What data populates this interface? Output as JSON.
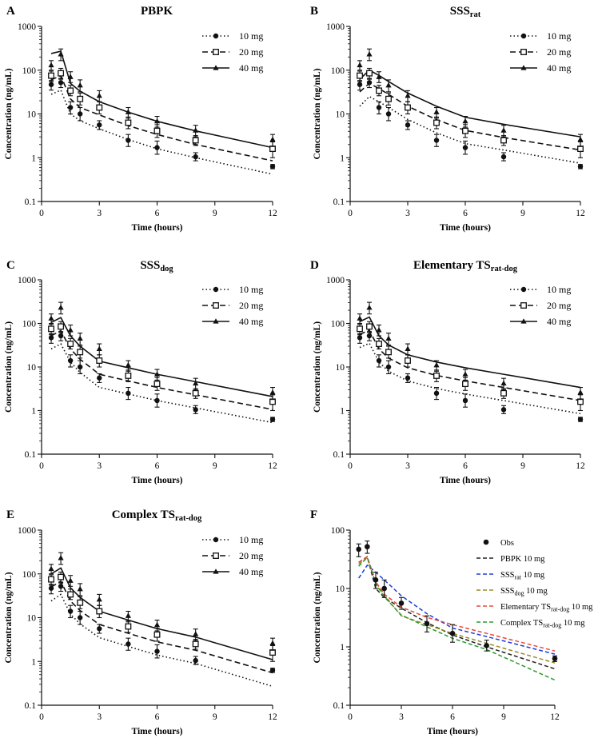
{
  "chart_data": [
    {
      "type": "line",
      "panel": "A",
      "title": "PBPK",
      "title_sub": "",
      "xlabel": "Time (hours)",
      "ylabel": "Concentration (ng/mL)",
      "xlim": [
        0,
        12
      ],
      "ylim": [
        0.1,
        1000
      ],
      "yscale": "log",
      "xticks": [
        0,
        3,
        6,
        9,
        12
      ],
      "yticks": [
        0.1,
        1,
        10,
        100,
        1000
      ],
      "ytick_labels": [
        "0.1",
        "1",
        "10",
        "100",
        "1000"
      ],
      "legend": [
        "10 mg",
        "20 mg",
        "40 mg"
      ],
      "series": [
        {
          "name": "10 mg",
          "x": [
            0.5,
            1,
            1.5,
            2,
            3,
            4.5,
            6,
            8,
            12
          ],
          "values": [
            28,
            35,
            10,
            7,
            4.6,
            2.6,
            1.6,
            1.0,
            0.42
          ]
        },
        {
          "name": "20 mg",
          "x": [
            0.5,
            1,
            1.5,
            2,
            3,
            4.5,
            6,
            8,
            12
          ],
          "values": [
            60,
            75,
            22,
            14,
            9.5,
            5.4,
            3.4,
            2.0,
            0.85
          ]
        },
        {
          "name": "40 mg",
          "x": [
            0.5,
            1,
            1.5,
            2,
            3,
            4.5,
            6,
            8,
            12
          ],
          "values": [
            240,
            270,
            50,
            33,
            19,
            11,
            6.8,
            4.1,
            1.7
          ]
        }
      ]
    },
    {
      "type": "line",
      "panel": "B",
      "title": "SSS",
      "title_sub": "rat",
      "xlabel": "Time (hours)",
      "ylabel": "Concentration (ng/mL)",
      "xlim": [
        0,
        12
      ],
      "ylim": [
        0.1,
        1000
      ],
      "yscale": "log",
      "xticks": [
        0,
        3,
        6,
        9,
        12
      ],
      "yticks": [
        0.1,
        1,
        10,
        100,
        1000
      ],
      "ytick_labels": [
        "0.1",
        "1",
        "10",
        "100",
        "1000"
      ],
      "legend": [
        "10 mg",
        "20 mg",
        "40 mg"
      ],
      "series": [
        {
          "name": "10 mg",
          "x": [
            0.5,
            1,
            1.5,
            2,
            3,
            4.5,
            6,
            8,
            12
          ],
          "values": [
            15,
            25,
            19,
            14,
            7.5,
            3.7,
            2.1,
            1.5,
            0.75
          ]
        },
        {
          "name": "20 mg",
          "x": [
            0.5,
            1,
            1.5,
            2,
            3,
            4.5,
            6,
            8,
            12
          ],
          "values": [
            32,
            50,
            38,
            28,
            15,
            7.4,
            4.2,
            2.9,
            1.5
          ]
        },
        {
          "name": "40 mg",
          "x": [
            0.5,
            1,
            1.5,
            2,
            3,
            4.5,
            6,
            8,
            12
          ],
          "values": [
            62,
            100,
            76,
            55,
            30,
            15,
            8.4,
            5.8,
            3.0
          ]
        }
      ]
    },
    {
      "type": "line",
      "panel": "C",
      "title": "SSS",
      "title_sub": "dog",
      "xlabel": "Time (hours)",
      "ylabel": "Concentration (ng/mL)",
      "xlim": [
        0,
        12
      ],
      "ylim": [
        0.1,
        1000
      ],
      "yscale": "log",
      "xticks": [
        0,
        3,
        6,
        9,
        12
      ],
      "yticks": [
        0.1,
        1,
        10,
        100,
        1000
      ],
      "ytick_labels": [
        "0.1",
        "1",
        "10",
        "100",
        "1000"
      ],
      "legend": [
        "10 mg",
        "20 mg",
        "40 mg"
      ],
      "series": [
        {
          "name": "10 mg",
          "x": [
            0.5,
            1,
            1.5,
            2,
            3,
            4.5,
            6,
            8,
            12
          ],
          "values": [
            26,
            34,
            13,
            7.5,
            3.4,
            2.4,
            1.7,
            1.15,
            0.53
          ]
        },
        {
          "name": "20 mg",
          "x": [
            0.5,
            1,
            1.5,
            2,
            3,
            4.5,
            6,
            8,
            12
          ],
          "values": [
            52,
            68,
            26,
            15,
            6.8,
            4.8,
            3.4,
            2.3,
            1.06
          ]
        },
        {
          "name": "40 mg",
          "x": [
            0.5,
            1,
            1.5,
            2,
            3,
            4.5,
            6,
            8,
            12
          ],
          "values": [
            105,
            136,
            52,
            30,
            13.6,
            9.6,
            6.8,
            4.6,
            2.1
          ]
        }
      ]
    },
    {
      "type": "line",
      "panel": "D",
      "title": "Elementary TS",
      "title_sub": "rat-dog",
      "xlabel": "Time (hours)",
      "ylabel": "Concentration (ng/mL)",
      "xlim": [
        0,
        12
      ],
      "ylim": [
        0.1,
        1000
      ],
      "yscale": "log",
      "xticks": [
        0,
        3,
        6,
        9,
        12
      ],
      "yticks": [
        0.1,
        1,
        10,
        100,
        1000
      ],
      "ytick_labels": [
        "0.1",
        "1",
        "10",
        "100",
        "1000"
      ],
      "legend": [
        "10 mg",
        "20 mg",
        "40 mg"
      ],
      "series": [
        {
          "name": "10 mg",
          "x": [
            0.5,
            1,
            1.5,
            2,
            3,
            4.5,
            6,
            8,
            12
          ],
          "values": [
            28,
            35,
            13,
            8,
            4.8,
            3.2,
            2.4,
            1.7,
            0.85
          ]
        },
        {
          "name": "20 mg",
          "x": [
            0.5,
            1,
            1.5,
            2,
            3,
            4.5,
            6,
            8,
            12
          ],
          "values": [
            56,
            70,
            26,
            16,
            9.6,
            6.4,
            4.8,
            3.4,
            1.7
          ]
        },
        {
          "name": "40 mg",
          "x": [
            0.5,
            1,
            1.5,
            2,
            3,
            4.5,
            6,
            8,
            12
          ],
          "values": [
            110,
            140,
            52,
            32,
            19,
            13,
            9.6,
            6.8,
            3.4
          ]
        }
      ]
    },
    {
      "type": "line",
      "panel": "E",
      "title": "Complex TS",
      "title_sub": "rat-dog",
      "xlabel": "Time (hours)",
      "ylabel": "Concentration (ng/mL)",
      "xlim": [
        0,
        12
      ],
      "ylim": [
        0.1,
        1000
      ],
      "yscale": "log",
      "xticks": [
        0,
        3,
        6,
        9,
        12
      ],
      "yticks": [
        0.1,
        1,
        10,
        100,
        1000
      ],
      "ytick_labels": [
        "0.1",
        "1",
        "10",
        "100",
        "1000"
      ],
      "legend": [
        "10 mg",
        "20 mg",
        "40 mg"
      ],
      "series": [
        {
          "name": "10 mg",
          "x": [
            0.5,
            1,
            1.5,
            2,
            3,
            4.5,
            6,
            8,
            12
          ],
          "values": [
            24,
            34,
            12,
            7.2,
            3.5,
            2.2,
            1.4,
            0.9,
            0.27
          ]
        },
        {
          "name": "20 mg",
          "x": [
            0.5,
            1,
            1.5,
            2,
            3,
            4.5,
            6,
            8,
            12
          ],
          "values": [
            50,
            68,
            24,
            14.5,
            7,
            4.4,
            2.8,
            1.8,
            0.55
          ]
        },
        {
          "name": "40 mg",
          "x": [
            0.5,
            1,
            1.5,
            2,
            3,
            4.5,
            6,
            8,
            12
          ],
          "values": [
            100,
            136,
            48,
            29,
            14,
            8.8,
            5.6,
            3.6,
            1.1
          ]
        }
      ]
    },
    {
      "type": "line",
      "panel": "F",
      "title": "",
      "title_sub": "",
      "xlabel": "Time (hours)",
      "ylabel": "Concentration (ng/mL)",
      "xlim": [
        0,
        12
      ],
      "ylim": [
        0.1,
        100
      ],
      "yscale": "log",
      "xticks": [
        0,
        3,
        6,
        9,
        12
      ],
      "yticks": [
        0.1,
        1,
        10,
        100
      ],
      "ytick_labels": [
        "0.1",
        "1",
        "10",
        "100"
      ],
      "legend": [
        "Obs",
        "PBPK 10 mg",
        "SSSrat 10 mg",
        "SSSdog 10 mg",
        "Elementary TSrat-dog 10 mg",
        "Complex TSrat-dog 10 mg"
      ],
      "series": [
        {
          "name": "PBPK 10 mg",
          "color": "#222222",
          "x": [
            0.5,
            1,
            1.5,
            2,
            3,
            4.5,
            6,
            8,
            12
          ],
          "values": [
            28,
            35,
            10,
            7,
            4.6,
            2.6,
            1.6,
            1.0,
            0.42
          ]
        },
        {
          "name": "SSSrat 10 mg",
          "color": "#1f3fd6",
          "x": [
            0.5,
            1,
            1.5,
            2,
            3,
            4.5,
            6,
            8,
            12
          ],
          "values": [
            15,
            25,
            19,
            14,
            7.5,
            3.7,
            2.1,
            1.5,
            0.75
          ]
        },
        {
          "name": "SSSdog 10 mg",
          "color": "#9a8a2a",
          "x": [
            0.5,
            1,
            1.5,
            2,
            3,
            4.5,
            6,
            8,
            12
          ],
          "values": [
            26,
            34,
            13,
            7.5,
            3.4,
            2.4,
            1.7,
            1.15,
            0.53
          ]
        },
        {
          "name": "Elementary TSrat-dog 10 mg",
          "color": "#e8483a",
          "x": [
            0.5,
            1,
            1.5,
            2,
            3,
            4.5,
            6,
            8,
            12
          ],
          "values": [
            28,
            35,
            13,
            8,
            4.8,
            3.2,
            2.4,
            1.7,
            0.85
          ]
        },
        {
          "name": "Complex TSrat-dog 10 mg",
          "color": "#2a9a2a",
          "x": [
            0.5,
            1,
            1.5,
            2,
            3,
            4.5,
            6,
            8,
            12
          ],
          "values": [
            24,
            34,
            12,
            7.2,
            3.5,
            2.2,
            1.4,
            0.9,
            0.27
          ]
        }
      ]
    }
  ],
  "observed": {
    "x": [
      0.5,
      1,
      1.5,
      2,
      3,
      4.5,
      6,
      8,
      12
    ],
    "10 mg": {
      "mean": [
        47,
        52,
        14,
        10,
        5.6,
        2.5,
        1.7,
        1.05,
        0.63
      ],
      "lo": [
        35,
        40,
        10,
        7,
        4.4,
        1.8,
        1.2,
        0.85,
        0.56
      ],
      "hi": [
        58,
        65,
        19,
        14,
        7.0,
        3.4,
        2.4,
        1.3,
        0.7
      ]
    },
    "20 mg": {
      "mean": [
        75,
        85,
        34,
        22,
        14,
        6.3,
        4.1,
        2.5,
        1.6
      ],
      "lo": [
        55,
        62,
        26,
        16,
        10,
        4.6,
        2.9,
        1.9,
        1.0
      ],
      "hi": [
        95,
        110,
        45,
        30,
        19,
        8.5,
        5.7,
        3.2,
        2.3
      ]
    },
    "40 mg": {
      "mean": [
        130,
        230,
        70,
        45,
        26,
        11,
        6.8,
        4.2,
        2.6
      ],
      "lo": [
        100,
        165,
        52,
        32,
        19,
        8.0,
        5.0,
        3.0,
        1.8
      ],
      "hi": [
        165,
        305,
        92,
        60,
        34,
        14,
        8.8,
        5.5,
        3.4
      ]
    }
  },
  "colors": {
    "black": "#111111"
  }
}
